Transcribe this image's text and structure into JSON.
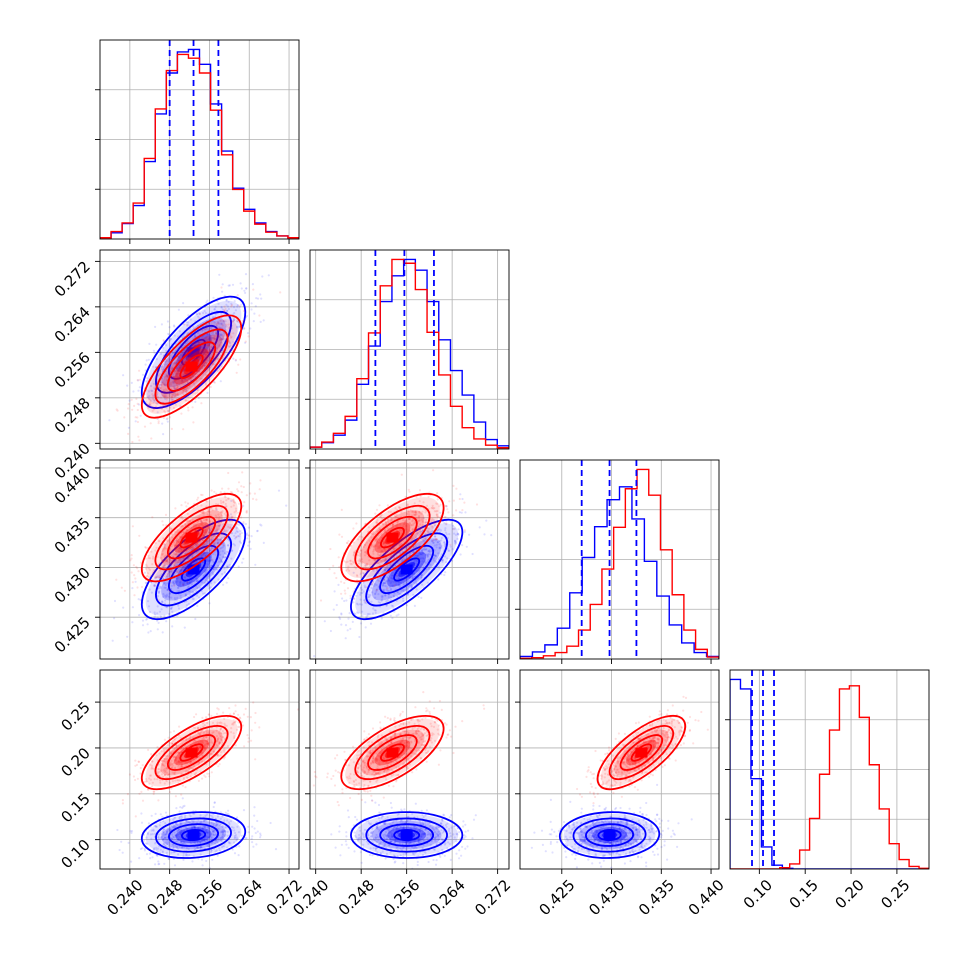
{
  "colors": {
    "series_a": "#0000ff",
    "series_b": "#ff0000"
  },
  "chart_data": {
    "type": "corner",
    "title": "",
    "parameters": [
      "",
      "",
      "",
      ""
    ],
    "ranges": [
      [
        0.234,
        0.274
      ],
      [
        0.239,
        0.274
      ],
      [
        0.4208,
        0.4408
      ],
      [
        0.068,
        0.285
      ]
    ],
    "ticks": [
      [
        "0.240",
        "0.248",
        "0.256",
        "0.264",
        "0.272"
      ],
      [
        "0.240",
        "0.248",
        "0.256",
        "0.264",
        "0.272"
      ],
      [
        "0.425",
        "0.430",
        "0.435",
        "0.440"
      ],
      [
        "0.10",
        "0.15",
        "0.20",
        "0.25"
      ]
    ],
    "grid": true,
    "series": [
      {
        "color": "#0000ff",
        "means": [
          0.2528,
          0.256,
          0.4298,
          0.105
        ],
        "sigmas": [
          0.0052,
          0.0049,
          0.0025,
          0.0125
        ],
        "correlations": {
          "1-0": 0.72,
          "2-0": 0.7,
          "2-1": 0.75,
          "3-0": 0.15,
          "3-1": 0.0,
          "3-2": 0.05
        },
        "quantiles": [
          [
            0.248,
            0.2528,
            0.2578
          ],
          [
            0.2505,
            0.2556,
            0.2608
          ],
          [
            0.427,
            0.4298,
            0.4325
          ],
          [
            0.092,
            0.104,
            0.116
          ]
        ],
        "hist_counts": [
          [
            0.2,
            1.0,
            2.5,
            5.4,
            12.5,
            20.2,
            26.8,
            30.2,
            30.6,
            28.2,
            21.8,
            14.2,
            8.2,
            4.8,
            2.6,
            1.2,
            0.5,
            0.2
          ],
          [
            0.3,
            1.0,
            2.2,
            4.6,
            10.3,
            16.4,
            23.5,
            27.6,
            30.2,
            28.5,
            23.5,
            17.4,
            12.5,
            8.6,
            4.3,
            1.5,
            0.5
          ],
          [
            0.4,
            1.1,
            2.2,
            4.8,
            10.3,
            15.8,
            20.6,
            24.8,
            26.8,
            21.8,
            15.2,
            9.8,
            5.3,
            2.5,
            1.0,
            0.4
          ],
          [
            30.0,
            28.5,
            14.3,
            3.5,
            0.6,
            0.1,
            0,
            0,
            0,
            0,
            0,
            0,
            0,
            0,
            0,
            0,
            0,
            0,
            0
          ]
        ]
      },
      {
        "color": "#ff0000",
        "means": [
          0.2524,
          0.2535,
          0.433,
          0.195
        ],
        "sigmas": [
          0.005,
          0.0045,
          0.0022,
          0.02
        ],
        "correlations": {
          "1-0": 0.75,
          "2-0": 0.72,
          "2-1": 0.68,
          "3-0": 0.7,
          "3-1": 0.65,
          "3-2": 0.72
        },
        "quantiles": [
          [
            0.2478,
            0.2524,
            0.2572
          ],
          [
            0.249,
            0.2535,
            0.258
          ],
          [
            0.4308,
            0.433,
            0.4352
          ],
          [
            0.175,
            0.195,
            0.215
          ]
        ],
        "hist_counts": [
          [
            0.2,
            1.2,
            2.6,
            5.8,
            13.0,
            21.0,
            27.2,
            29.8,
            29.2,
            26.8,
            20.8,
            13.6,
            8.0,
            4.5,
            2.4,
            1.1,
            0.5,
            0.2
          ],
          [
            0.3,
            1.1,
            2.5,
            5.2,
            11.2,
            18.5,
            26.0,
            30.2,
            29.6,
            25.4,
            18.6,
            11.8,
            6.8,
            3.4,
            1.6,
            0.6,
            0.2
          ],
          [
            0.1,
            0.2,
            0.5,
            1.0,
            2.0,
            4.5,
            8.5,
            14.0,
            20.5,
            26.5,
            29.5,
            25.5,
            17.0,
            10.0,
            4.5,
            1.5,
            0.3
          ],
          [
            0,
            0,
            0,
            0,
            0,
            0.2,
            0.8,
            3.0,
            8.0,
            15.0,
            22.0,
            28.5,
            29.0,
            24.0,
            16.5,
            9.5,
            4.0,
            1.5,
            0.4,
            0.1
          ]
        ]
      }
    ]
  }
}
